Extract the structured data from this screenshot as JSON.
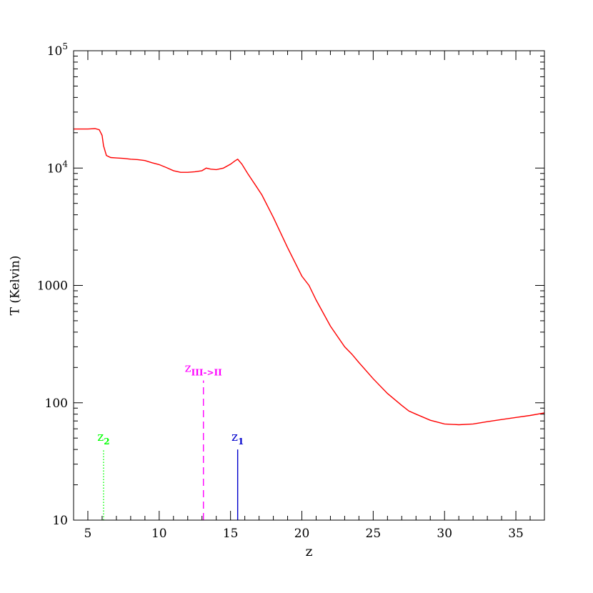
{
  "chart_data": {
    "type": "line",
    "xlabel": "z",
    "ylabel": "T (Kelvin)",
    "xlim": [
      4,
      37
    ],
    "ylim": [
      10,
      100000
    ],
    "yscale": "log",
    "xticks": [
      "5",
      "10",
      "15",
      "20",
      "25",
      "30",
      "35"
    ],
    "xtick_values": [
      5,
      10,
      15,
      20,
      25,
      30,
      35
    ],
    "yticks": [
      {
        "value": 10,
        "base": "10",
        "exp": ""
      },
      {
        "value": 100,
        "base": "100",
        "exp": ""
      },
      {
        "value": 1000,
        "base": "1000",
        "exp": ""
      },
      {
        "value": 10000,
        "base": "10",
        "exp": "4"
      },
      {
        "value": 100000,
        "base": "10",
        "exp": "5"
      }
    ],
    "series": [
      {
        "color": "#ff0000",
        "x": [
          4,
          5,
          5.5,
          5.8,
          6.0,
          6.1,
          6.3,
          6.6,
          7,
          7.5,
          8,
          8.5,
          9,
          9.5,
          10,
          10.5,
          11,
          11.5,
          12,
          12.5,
          13,
          13.3,
          13.6,
          14,
          14.5,
          15,
          15.3,
          15.5,
          15.8,
          16.2,
          16.7,
          17.2,
          18,
          19,
          20,
          20.5,
          21,
          22,
          23,
          23.5,
          24,
          25,
          26,
          27,
          27.5,
          28,
          29,
          30,
          31,
          32,
          33,
          34,
          35,
          36,
          37
        ],
        "y": [
          21500,
          21500,
          21700,
          21200,
          19000,
          15500,
          12800,
          12300,
          12200,
          12100,
          11900,
          11800,
          11600,
          11100,
          10700,
          10100,
          9500,
          9200,
          9200,
          9300,
          9500,
          10000,
          9800,
          9700,
          10000,
          10800,
          11500,
          11900,
          10800,
          9000,
          7300,
          5900,
          3800,
          2100,
          1200,
          1000,
          750,
          450,
          300,
          260,
          220,
          160,
          120,
          95,
          85,
          80,
          71,
          66,
          65,
          66,
          69,
          72,
          75,
          78,
          82
        ]
      }
    ],
    "markers": [
      {
        "z": 6.1,
        "top": 40,
        "color": "#00ff00",
        "style": "dotted",
        "label_base": "z",
        "label_sub": "2"
      },
      {
        "z": 13.1,
        "top": 155,
        "color": "#ff00ff",
        "style": "dashed",
        "label_base": "z",
        "label_sub": "III->II"
      },
      {
        "z": 15.5,
        "top": 40,
        "color": "#0000cc",
        "style": "solid",
        "label_base": "z",
        "label_sub": "1"
      }
    ],
    "grid": false,
    "legend": "none"
  }
}
